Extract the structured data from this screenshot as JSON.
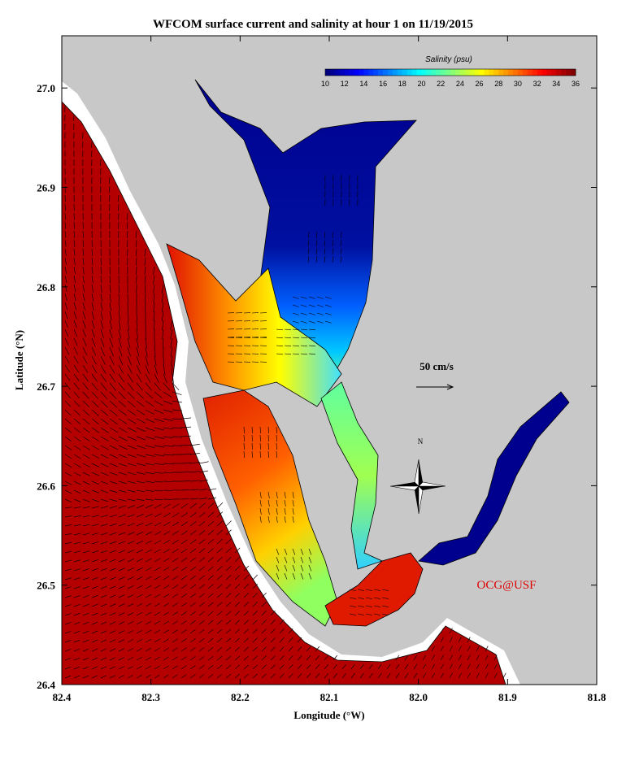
{
  "title": "WFCOM surface current and salinity at hour 1 on 11/19/2015",
  "x_axis": {
    "label": "Longitude (°W)",
    "ticks": [
      "82.4",
      "82.3",
      "82.2",
      "82.1",
      "82.0",
      "81.9",
      "81.8"
    ]
  },
  "y_axis": {
    "label": "Latitude (°N)",
    "ticks": [
      "26.4",
      "26.5",
      "26.6",
      "26.7",
      "26.8",
      "26.9",
      "27.0"
    ]
  },
  "colorbar": {
    "label": "Salinity (psu)",
    "ticks": [
      "10",
      "12",
      "14",
      "16",
      "18",
      "20",
      "22",
      "24",
      "26",
      "28",
      "30",
      "32",
      "34",
      "36"
    ]
  },
  "scale_label": "50 cm/s",
  "compass_label": "N",
  "credit": "OCG@USF"
}
